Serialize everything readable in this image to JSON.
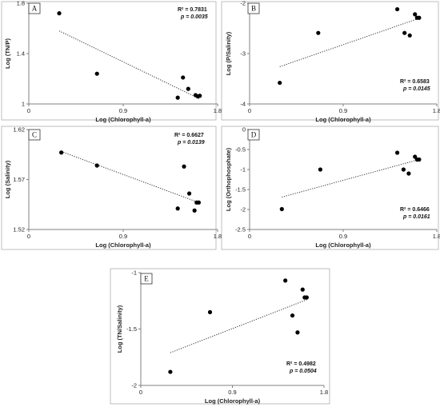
{
  "chart_data": [
    {
      "type": "scatter",
      "panel": "A",
      "xlabel": "Log (Chlorophyll-a)",
      "ylabel": "Log (TN/P)",
      "xlim": [
        0,
        1.8
      ],
      "ylim": [
        1,
        1.8
      ],
      "xticks": [
        "0",
        "0.9",
        "1.8"
      ],
      "yticks": [
        "1",
        "1.4",
        "1.8"
      ],
      "points": [
        [
          0.29,
          1.72
        ],
        [
          0.65,
          1.24
        ],
        [
          1.42,
          1.05
        ],
        [
          1.47,
          1.21
        ],
        [
          1.52,
          1.12
        ],
        [
          1.59,
          1.07
        ],
        [
          1.61,
          1.06
        ],
        [
          1.63,
          1.065
        ]
      ],
      "trend": [
        [
          0.29,
          1.58
        ],
        [
          1.63,
          1.04
        ]
      ],
      "r2": "R² = 0.7831",
      "p": "p = 0.0035"
    },
    {
      "type": "scatter",
      "panel": "B",
      "xlabel": "Log (Chlorophyll-a)",
      "ylabel": "Log (P/Salinity)",
      "xlim": [
        0,
        1.8
      ],
      "ylim": [
        -4,
        -2
      ],
      "xticks": [
        "0",
        "0.9",
        "1.8"
      ],
      "yticks": [
        "-4",
        "-3",
        "-2"
      ],
      "points": [
        [
          0.29,
          -3.58
        ],
        [
          0.66,
          -2.59
        ],
        [
          1.42,
          -2.12
        ],
        [
          1.49,
          -2.59
        ],
        [
          1.54,
          -2.64
        ],
        [
          1.59,
          -2.22
        ],
        [
          1.61,
          -2.29
        ],
        [
          1.63,
          -2.29
        ]
      ],
      "trend": [
        [
          0.29,
          -3.26
        ],
        [
          1.63,
          -2.3
        ]
      ],
      "r2": "R² = 0.6583",
      "p": "p = 0.0145"
    },
    {
      "type": "scatter",
      "panel": "C",
      "xlabel": "Log (Chlorophyll-a)",
      "ylabel": "Log (Salinity)",
      "xlim": [
        0,
        1.8
      ],
      "ylim": [
        1.52,
        1.62
      ],
      "xticks": [
        "0",
        "0.9",
        "1.8"
      ],
      "yticks": [
        "1.52",
        "1.57",
        "1.62"
      ],
      "points": [
        [
          0.31,
          1.597
        ],
        [
          0.65,
          1.584
        ],
        [
          1.42,
          1.541
        ],
        [
          1.48,
          1.583
        ],
        [
          1.53,
          1.556
        ],
        [
          1.58,
          1.539
        ],
        [
          1.6,
          1.547
        ],
        [
          1.62,
          1.547
        ]
      ],
      "trend": [
        [
          0.31,
          1.598
        ],
        [
          1.62,
          1.547
        ]
      ],
      "r2": "R² = 0.6627",
      "p": "p = 0.0139"
    },
    {
      "type": "scatter",
      "panel": "D",
      "xlabel": "Log (Chlorophyll-a)",
      "ylabel": "Log (Orthophosphate)",
      "xlim": [
        0,
        1.8
      ],
      "ylim": [
        -2.5,
        0
      ],
      "xticks": [
        "0",
        "0.9",
        "1.8"
      ],
      "yticks": [
        "-2.5",
        "-2",
        "-1.5",
        "-1",
        "-0.5",
        "0"
      ],
      "points": [
        [
          0.31,
          -1.99
        ],
        [
          0.68,
          -1.0
        ],
        [
          1.42,
          -0.58
        ],
        [
          1.48,
          -1.0
        ],
        [
          1.53,
          -1.1
        ],
        [
          1.59,
          -0.68
        ],
        [
          1.61,
          -0.75
        ],
        [
          1.63,
          -0.75
        ]
      ],
      "trend": [
        [
          0.31,
          -1.69
        ],
        [
          1.63,
          -0.75
        ]
      ],
      "r2": "R² = 0.6466",
      "p": "p = 0.0161"
    },
    {
      "type": "scatter",
      "panel": "E",
      "xlabel": "Log (Chlorophyll-a)",
      "ylabel": "Log (TN/Salinity)",
      "xlim": [
        0,
        1.8
      ],
      "ylim": [
        -2,
        -1
      ],
      "xticks": [
        "0",
        "0.9",
        "1.8"
      ],
      "yticks": [
        "-2",
        "-1.5",
        "-1"
      ],
      "points": [
        [
          0.29,
          -1.88
        ],
        [
          0.68,
          -1.35
        ],
        [
          1.42,
          -1.07
        ],
        [
          1.49,
          -1.38
        ],
        [
          1.54,
          -1.53
        ],
        [
          1.59,
          -1.15
        ],
        [
          1.61,
          -1.22
        ],
        [
          1.63,
          -1.22
        ]
      ],
      "trend": [
        [
          0.29,
          -1.71
        ],
        [
          1.63,
          -1.24
        ]
      ],
      "r2": "R² = 0.4982",
      "p": "p = 0.0504"
    }
  ]
}
